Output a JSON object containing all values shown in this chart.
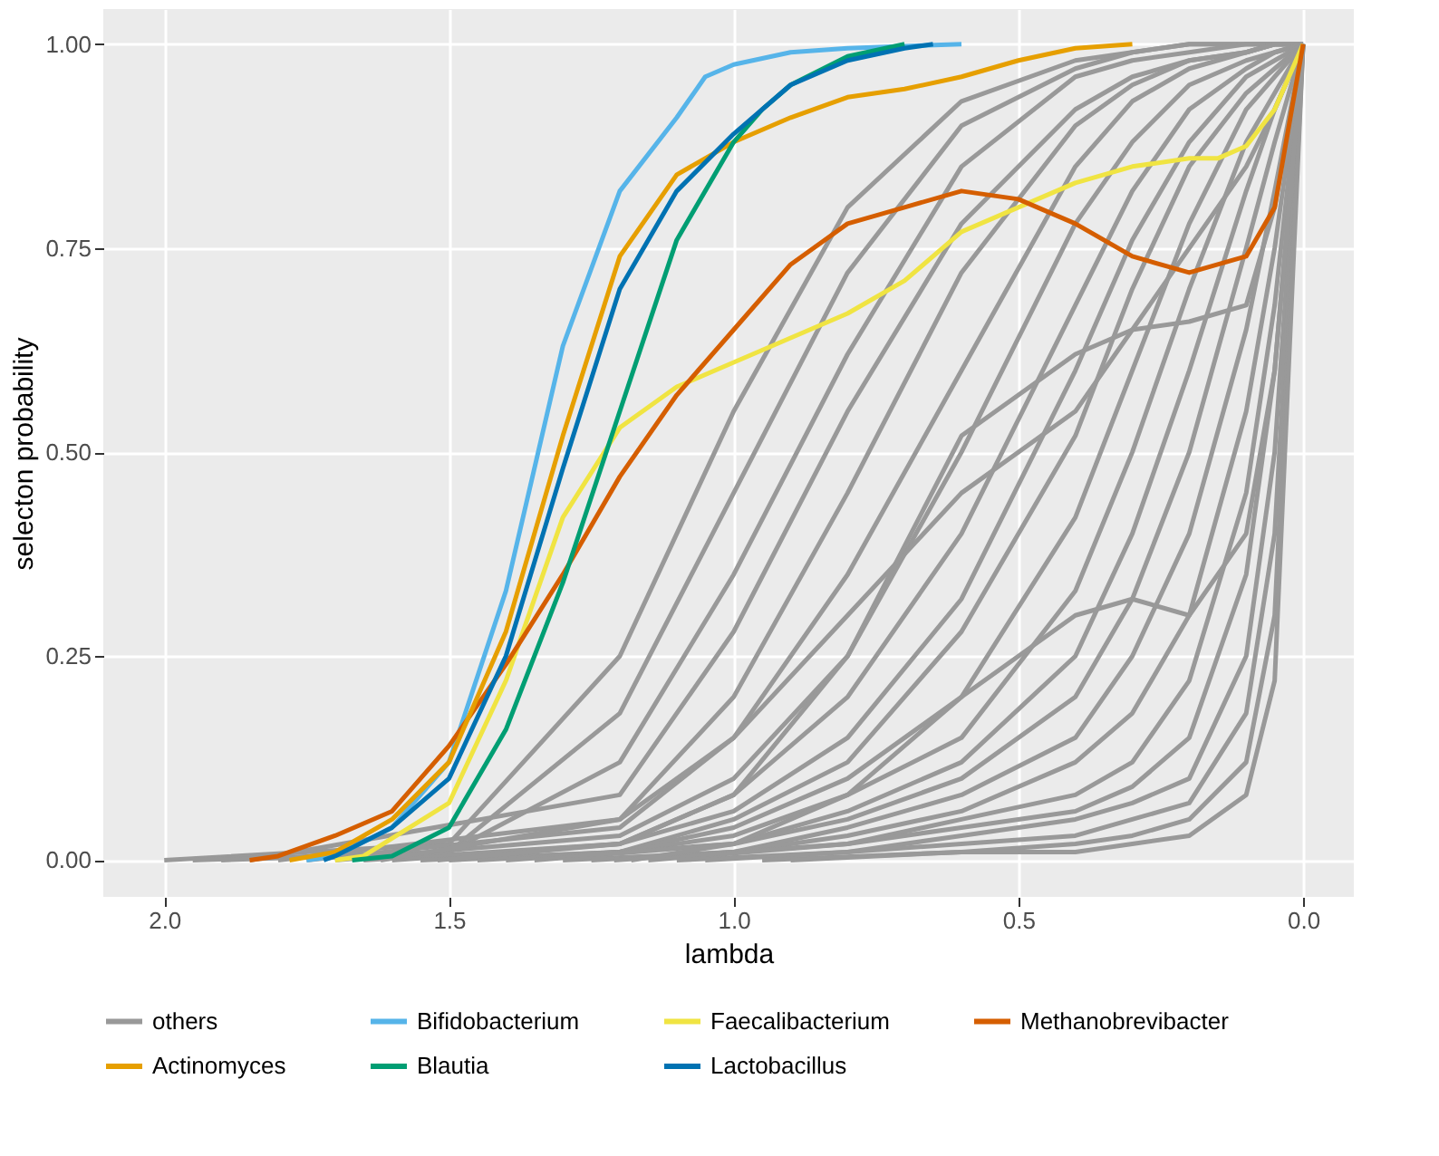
{
  "chart_data": {
    "type": "line",
    "xlabel": "lambda",
    "ylabel": "selecton probability",
    "xlim": [
      2.107,
      -0.089
    ],
    "ylim": [
      -0.045,
      1.043
    ],
    "xticks": [
      {
        "value": 2,
        "label": "2.0"
      },
      {
        "value": 1.5,
        "label": "1.5"
      },
      {
        "value": 1,
        "label": "1.0"
      },
      {
        "value": 0.5,
        "label": "0.5"
      },
      {
        "value": 0,
        "label": "0.0"
      }
    ],
    "yticks": [
      {
        "value": 0,
        "label": "0.00"
      },
      {
        "value": 0.25,
        "label": "0.25"
      },
      {
        "value": 0.5,
        "label": "0.50"
      },
      {
        "value": 0.75,
        "label": "0.75"
      },
      {
        "value": 1,
        "label": "1.00"
      }
    ],
    "grid": true,
    "legend": "bottom",
    "line_style": "solid",
    "marker": "none",
    "series": [
      {
        "name": "others",
        "color": "#999999",
        "x": [
          2.0,
          1.5,
          1.2,
          1.0,
          0.8,
          0.6,
          0.4,
          0.3,
          0.2,
          0.1,
          0.05,
          0
        ],
        "values": [
          0,
          0.02,
          0.25,
          0.55,
          0.8,
          0.93,
          0.98,
          0.99,
          1,
          1,
          1,
          1
        ]
      },
      {
        "color": "#999999",
        "x": [
          1.95,
          1.5,
          1.2,
          1.0,
          0.8,
          0.6,
          0.4,
          0.3,
          0.2,
          0.1,
          0.05,
          0
        ],
        "values": [
          0,
          0.01,
          0.18,
          0.45,
          0.72,
          0.9,
          0.97,
          0.99,
          1,
          1,
          1,
          1
        ]
      },
      {
        "color": "#999999",
        "x": [
          1.9,
          1.5,
          1.2,
          1.0,
          0.8,
          0.6,
          0.4,
          0.3,
          0.2,
          0.1,
          0.05,
          0
        ],
        "values": [
          0,
          0.01,
          0.12,
          0.35,
          0.62,
          0.85,
          0.96,
          0.98,
          0.99,
          1,
          1,
          1
        ]
      },
      {
        "color": "#999999",
        "x": [
          1.85,
          1.2,
          1.0,
          0.8,
          0.6,
          0.4,
          0.3,
          0.2,
          0.1,
          0.05,
          0
        ],
        "values": [
          0,
          0.08,
          0.28,
          0.55,
          0.78,
          0.92,
          0.96,
          0.98,
          0.99,
          1,
          1
        ]
      },
      {
        "color": "#999999",
        "x": [
          1.8,
          1.2,
          1.0,
          0.8,
          0.6,
          0.4,
          0.3,
          0.2,
          0.1,
          0.05,
          0
        ],
        "values": [
          0,
          0.05,
          0.2,
          0.45,
          0.72,
          0.9,
          0.95,
          0.98,
          0.99,
          1,
          1
        ]
      },
      {
        "color": "#999999",
        "x": [
          1.75,
          1.2,
          1.0,
          0.8,
          0.6,
          0.4,
          0.3,
          0.2,
          0.1,
          0.05,
          0
        ],
        "values": [
          0,
          0.04,
          0.15,
          0.35,
          0.6,
          0.85,
          0.93,
          0.97,
          0.99,
          1,
          1
        ]
      },
      {
        "color": "#999999",
        "x": [
          1.7,
          1.2,
          1.0,
          0.8,
          0.6,
          0.4,
          0.3,
          0.2,
          0.1,
          0.05,
          0
        ],
        "values": [
          0,
          0.03,
          0.1,
          0.25,
          0.5,
          0.78,
          0.88,
          0.95,
          0.98,
          0.99,
          1
        ]
      },
      {
        "color": "#999999",
        "x": [
          1.65,
          1.2,
          1.0,
          0.8,
          0.6,
          0.4,
          0.3,
          0.2,
          0.1,
          0.05,
          0
        ],
        "values": [
          0,
          0.02,
          0.08,
          0.2,
          0.4,
          0.68,
          0.82,
          0.92,
          0.97,
          0.99,
          1
        ]
      },
      {
        "color": "#999999",
        "x": [
          1.6,
          1.2,
          1.0,
          0.8,
          0.6,
          0.4,
          0.3,
          0.2,
          0.1,
          0.05,
          0
        ],
        "values": [
          0,
          0.02,
          0.06,
          0.15,
          0.32,
          0.6,
          0.76,
          0.88,
          0.96,
          0.98,
          1
        ]
      },
      {
        "color": "#999999",
        "x": [
          1.55,
          1.2,
          1.0,
          0.8,
          0.6,
          0.4,
          0.3,
          0.2,
          0.1,
          0.05,
          0
        ],
        "values": [
          0,
          0.01,
          0.05,
          0.12,
          0.28,
          0.52,
          0.7,
          0.85,
          0.94,
          0.97,
          1
        ]
      },
      {
        "color": "#999999",
        "x": [
          1.5,
          1.2,
          1.0,
          0.8,
          0.6,
          0.4,
          0.3,
          0.2,
          0.1,
          0.05,
          0
        ],
        "values": [
          0,
          0.01,
          0.04,
          0.1,
          0.2,
          0.42,
          0.6,
          0.78,
          0.92,
          0.96,
          1
        ]
      },
      {
        "color": "#999999",
        "x": [
          1.45,
          1.2,
          1.0,
          0.8,
          0.6,
          0.4,
          0.3,
          0.2,
          0.1,
          0.05,
          0
        ],
        "values": [
          0,
          0.01,
          0.03,
          0.08,
          0.15,
          0.33,
          0.5,
          0.7,
          0.88,
          0.94,
          1
        ]
      },
      {
        "color": "#999999",
        "x": [
          1.4,
          1.0,
          0.8,
          0.6,
          0.4,
          0.3,
          0.2,
          0.1,
          0.05,
          0
        ],
        "values": [
          0,
          0.02,
          0.06,
          0.12,
          0.25,
          0.4,
          0.6,
          0.82,
          0.92,
          1
        ]
      },
      {
        "color": "#999999",
        "x": [
          1.35,
          1.0,
          0.8,
          0.6,
          0.4,
          0.3,
          0.2,
          0.1,
          0.05,
          0
        ],
        "values": [
          0,
          0.02,
          0.05,
          0.1,
          0.2,
          0.32,
          0.5,
          0.75,
          0.88,
          1
        ]
      },
      {
        "color": "#999999",
        "x": [
          1.3,
          1.0,
          0.8,
          0.6,
          0.4,
          0.3,
          0.2,
          0.1,
          0.05,
          0
        ],
        "values": [
          0,
          0.01,
          0.04,
          0.08,
          0.15,
          0.25,
          0.4,
          0.65,
          0.82,
          1
        ]
      },
      {
        "color": "#999999",
        "x": [
          1.25,
          1.0,
          0.8,
          0.6,
          0.4,
          0.3,
          0.2,
          0.1,
          0.05,
          0
        ],
        "values": [
          0,
          0.01,
          0.03,
          0.06,
          0.12,
          0.18,
          0.3,
          0.55,
          0.75,
          1
        ]
      },
      {
        "color": "#999999",
        "x": [
          1.21,
          1.0,
          0.8,
          0.6,
          0.4,
          0.3,
          0.2,
          0.1,
          0.05,
          0
        ],
        "values": [
          0,
          0.01,
          0.02,
          0.05,
          0.08,
          0.12,
          0.22,
          0.45,
          0.68,
          1
        ]
      },
      {
        "color": "#999999",
        "x": [
          1.15,
          0.8,
          0.6,
          0.4,
          0.3,
          0.2,
          0.1,
          0.05,
          0
        ],
        "values": [
          0,
          0.02,
          0.04,
          0.06,
          0.09,
          0.15,
          0.35,
          0.6,
          1
        ]
      },
      {
        "color": "#999999",
        "x": [
          1.1,
          0.8,
          0.6,
          0.4,
          0.3,
          0.2,
          0.1,
          0.05,
          0
        ],
        "values": [
          0,
          0.01,
          0.03,
          0.05,
          0.07,
          0.1,
          0.25,
          0.5,
          1
        ]
      },
      {
        "color": "#999999",
        "x": [
          1.05,
          0.8,
          0.6,
          0.4,
          0.3,
          0.2,
          0.1,
          0.05,
          0
        ],
        "values": [
          0,
          0.01,
          0.02,
          0.03,
          0.05,
          0.07,
          0.18,
          0.4,
          1
        ]
      },
      {
        "color": "#999999",
        "x": [
          0.95,
          0.6,
          0.4,
          0.3,
          0.2,
          0.1,
          0.05,
          0
        ],
        "values": [
          0,
          0.01,
          0.02,
          0.03,
          0.05,
          0.12,
          0.3,
          1
        ]
      },
      {
        "color": "#999999",
        "x": [
          0.9,
          0.6,
          0.4,
          0.3,
          0.2,
          0.1,
          0.05,
          0
        ],
        "values": [
          0,
          0.01,
          0.01,
          0.02,
          0.03,
          0.08,
          0.22,
          1
        ]
      },
      {
        "color": "#999999",
        "x": [
          1.62,
          1.2,
          1.0,
          0.8,
          0.6,
          0.4,
          0.3,
          0.2,
          0.1,
          0.05,
          0
        ],
        "values": [
          0,
          0.05,
          0.15,
          0.3,
          0.45,
          0.55,
          0.65,
          0.75,
          0.85,
          0.92,
          1
        ]
      },
      {
        "color": "#999999",
        "x": [
          1.52,
          1.2,
          1.0,
          0.8,
          0.6,
          0.4,
          0.3,
          0.2,
          0.1,
          0.05,
          0
        ],
        "values": [
          0,
          0.02,
          0.08,
          0.25,
          0.52,
          0.62,
          0.65,
          0.66,
          0.68,
          0.8,
          1
        ]
      },
      {
        "color": "#999999",
        "x": [
          1.18,
          1.0,
          0.8,
          0.6,
          0.4,
          0.3,
          0.2,
          0.1,
          0.05,
          0
        ],
        "values": [
          0,
          0.02,
          0.08,
          0.2,
          0.3,
          0.32,
          0.3,
          0.4,
          0.6,
          1
        ]
      },
      {
        "name": "Bifidobacterium",
        "color": "#56b4e9",
        "x": [
          1.75,
          1.7,
          1.6,
          1.5,
          1.4,
          1.3,
          1.2,
          1.1,
          1.05,
          1.0,
          0.9,
          0.8,
          0.6
        ],
        "values": [
          0,
          0.005,
          0.04,
          0.12,
          0.33,
          0.63,
          0.82,
          0.91,
          0.96,
          0.975,
          0.99,
          0.995,
          1
        ]
      },
      {
        "name": "Faecalibacterium",
        "color": "#f0e442",
        "x": [
          1.7,
          1.65,
          1.5,
          1.4,
          1.3,
          1.2,
          1.1,
          1.0,
          0.9,
          0.8,
          0.7,
          0.6,
          0.5,
          0.4,
          0.3,
          0.2,
          0.15,
          0.1,
          0.05,
          0
        ],
        "values": [
          0,
          0.005,
          0.07,
          0.22,
          0.42,
          0.53,
          0.58,
          0.61,
          0.64,
          0.67,
          0.71,
          0.77,
          0.8,
          0.83,
          0.85,
          0.86,
          0.86,
          0.875,
          0.92,
          1
        ]
      },
      {
        "name": "Methanobrevibacter",
        "color": "#d55e00",
        "x": [
          1.85,
          1.8,
          1.7,
          1.6,
          1.5,
          1.4,
          1.3,
          1.2,
          1.1,
          1.0,
          0.9,
          0.8,
          0.7,
          0.6,
          0.5,
          0.4,
          0.3,
          0.2,
          0.1,
          0.05,
          0
        ],
        "values": [
          0,
          0.005,
          0.03,
          0.06,
          0.14,
          0.24,
          0.35,
          0.47,
          0.57,
          0.65,
          0.73,
          0.78,
          0.8,
          0.82,
          0.81,
          0.78,
          0.74,
          0.72,
          0.74,
          0.8,
          1
        ]
      },
      {
        "name": "Actinomyces",
        "color": "#e69f00",
        "x": [
          1.78,
          1.7,
          1.6,
          1.5,
          1.4,
          1.3,
          1.2,
          1.1,
          1.0,
          0.9,
          0.8,
          0.7,
          0.6,
          0.5,
          0.4,
          0.3
        ],
        "values": [
          0,
          0.01,
          0.05,
          0.12,
          0.28,
          0.52,
          0.74,
          0.84,
          0.88,
          0.91,
          0.935,
          0.945,
          0.96,
          0.98,
          0.995,
          1
        ]
      },
      {
        "name": "Blautia",
        "color": "#009e73",
        "x": [
          1.67,
          1.6,
          1.5,
          1.4,
          1.3,
          1.2,
          1.1,
          1.0,
          0.95,
          0.9,
          0.8,
          0.7
        ],
        "values": [
          0,
          0.005,
          0.04,
          0.16,
          0.34,
          0.55,
          0.76,
          0.88,
          0.92,
          0.95,
          0.985,
          1
        ]
      },
      {
        "name": "Lactobacillus",
        "color": "#0072b2",
        "x": [
          1.72,
          1.7,
          1.6,
          1.5,
          1.4,
          1.3,
          1.2,
          1.1,
          1.0,
          0.9,
          0.8,
          0.7,
          0.65
        ],
        "values": [
          0,
          0.005,
          0.04,
          0.1,
          0.25,
          0.48,
          0.7,
          0.82,
          0.89,
          0.95,
          0.98,
          0.995,
          1
        ]
      }
    ]
  }
}
